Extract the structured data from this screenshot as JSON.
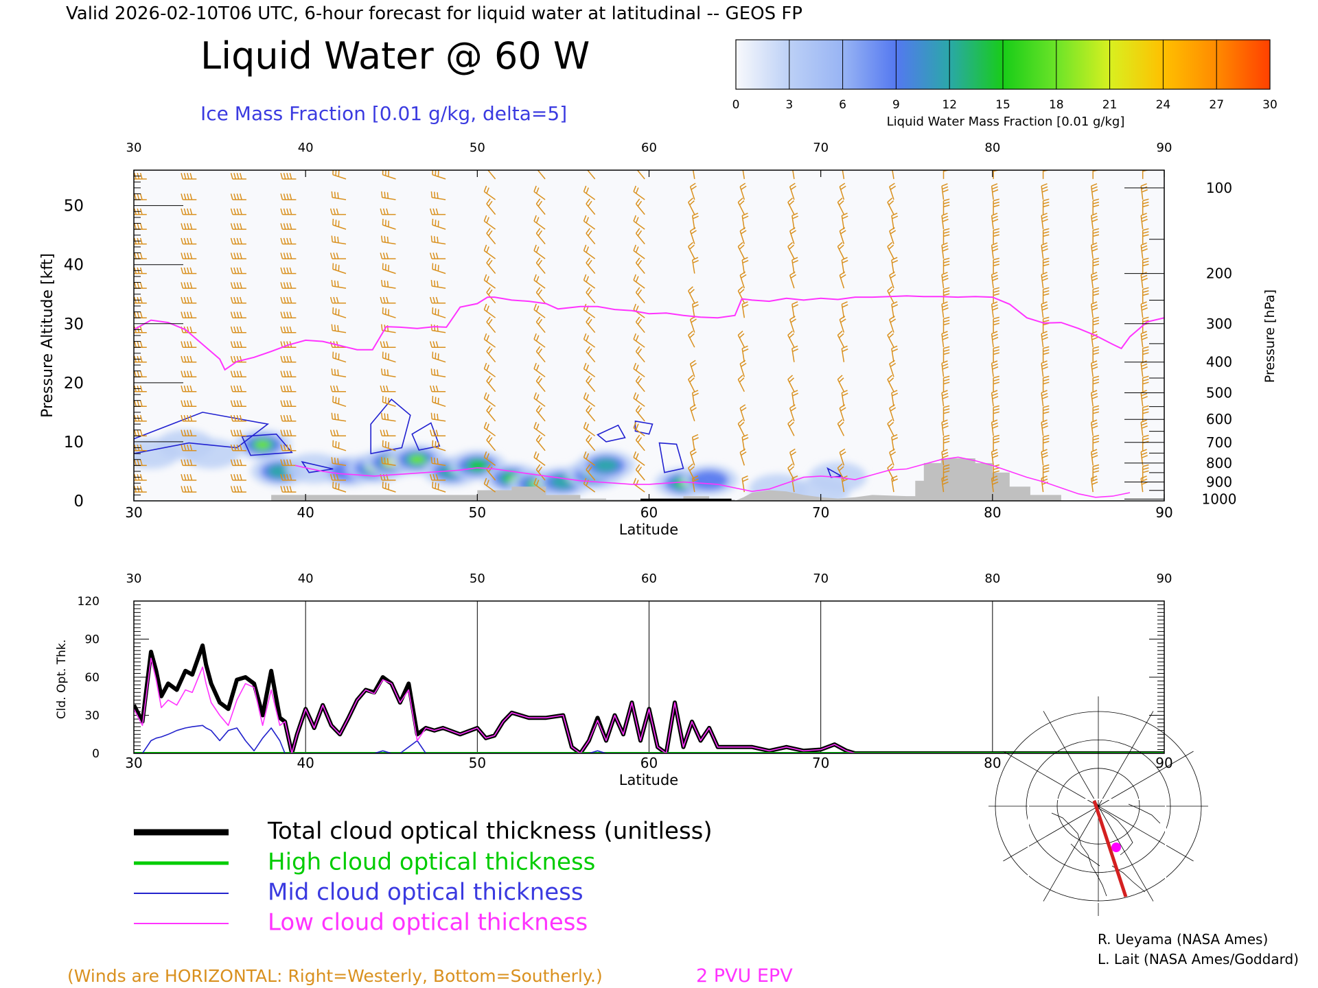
{
  "header": {
    "valid_line": "Valid 2026-02-10T06 UTC, 6-hour forecast for liquid water at latitudinal -- GEOS FP",
    "main_title": "Liquid Water @ 60 W",
    "subtitle": "Ice Mass Fraction [0.01 g/kg, delta=5]"
  },
  "colorbar": {
    "title": "Liquid Water Mass Fraction [0.01 g/kg]",
    "ticks": [
      "0",
      "3",
      "6",
      "9",
      "12",
      "15",
      "18",
      "21",
      "24",
      "27",
      "30"
    ],
    "colors": [
      "#f8f9fc",
      "#bcd0f6",
      "#98b4f4",
      "#5478f0",
      "#2aa8a8",
      "#18cc18",
      "#6ce428",
      "#d8f020",
      "#ffc000",
      "#ff8a00",
      "#ff4000"
    ]
  },
  "colors": {
    "wind_barbs": "#d9901e",
    "epv_line": "#ff33ff",
    "ice_contour": "#2020d0",
    "topography": "#c0c0c0",
    "total_line": "#000000",
    "high_line": "#00cc00",
    "mid_line": "#2222cc",
    "low_line": "#ff33ff"
  },
  "cross_section": {
    "x_top_ticks": [
      "30",
      "40",
      "50",
      "60",
      "70",
      "80",
      "90"
    ],
    "x_bottom_ticks": [
      "30",
      "40",
      "50",
      "60",
      "70",
      "80",
      "90"
    ],
    "xlabel": "Latitude",
    "ylabel_left": "Pressure Altitude [kft]",
    "y_left_ticks": [
      "0",
      "10",
      "20",
      "30",
      "40",
      "50"
    ],
    "ylabel_right": "Pressure [hPa]",
    "y_right_ticks": [
      "100",
      "200",
      "300",
      "400",
      "500",
      "600",
      "700",
      "800",
      "900",
      "1000"
    ]
  },
  "chart_data": [
    {
      "type": "area",
      "title": "Liquid Water @ 60 W",
      "xlabel": "Latitude",
      "ylabel": "Pressure Altitude [kft]",
      "xlim": [
        30,
        90
      ],
      "ylim": [
        0,
        56
      ],
      "y_right_pressure_hpa": [
        100,
        200,
        300,
        400,
        500,
        600,
        700,
        800,
        900,
        1000
      ],
      "y_right_altitude_kft": [
        53,
        38.5,
        30,
        23.5,
        18.3,
        13.8,
        9.9,
        6.4,
        3.2,
        0.3
      ],
      "epv_2pvu": {
        "name": "2 PVU EPV",
        "lat": [
          30,
          31,
          32,
          33,
          34,
          35,
          35.3,
          36,
          37,
          38,
          39,
          40,
          41,
          42,
          43,
          43.9,
          44.7,
          45.5,
          46.5,
          47.5,
          48.2,
          49,
          50,
          50.6,
          51,
          52,
          53,
          54,
          54.7,
          56,
          57,
          58,
          59,
          60,
          61,
          62,
          63,
          64,
          65,
          65.4,
          66,
          67,
          68,
          69,
          70,
          71,
          72,
          73,
          74,
          75,
          76,
          77,
          78,
          79,
          80,
          81,
          82,
          83,
          84,
          85,
          86,
          87,
          87.5,
          88,
          89,
          90
        ],
        "kft": [
          29,
          30.6,
          30.2,
          29,
          26.5,
          24,
          22.2,
          23.6,
          24.3,
          25.3,
          26.4,
          27.2,
          27.0,
          26.3,
          25.6,
          25.6,
          29.5,
          29.4,
          29.2,
          29.5,
          29.4,
          32.8,
          33.4,
          34.5,
          34.5,
          34.0,
          33.8,
          33.4,
          32.5,
          32.9,
          32.9,
          32.4,
          32.2,
          31.7,
          31.8,
          31.4,
          31.1,
          31.0,
          31.4,
          34.2,
          34.0,
          33.8,
          34.3,
          34.0,
          34.3,
          34.1,
          34.5,
          34.5,
          34.6,
          34.7,
          34.6,
          34.6,
          34.5,
          34.6,
          34.5,
          33.3,
          31.0,
          30.1,
          30.2,
          29.2,
          28.0,
          26.5,
          25.8,
          27.8,
          30.3,
          31.0
        ]
      },
      "epv_2pvu_lower": {
        "lat": [
          39.4,
          40,
          41,
          42,
          43,
          44,
          45,
          46,
          47,
          48,
          49,
          50,
          51,
          52,
          53,
          54,
          55,
          56,
          57,
          58,
          59,
          60,
          61,
          62,
          63,
          64,
          65,
          66,
          67,
          68,
          69,
          70,
          71,
          72,
          73,
          74,
          75,
          76,
          77,
          78,
          79,
          80,
          81,
          82,
          83,
          84,
          85,
          86,
          87,
          88
        ],
        "kft": [
          6.0,
          5.6,
          5.0,
          4.6,
          4.4,
          4.2,
          4.4,
          4.6,
          4.8,
          5.0,
          5.2,
          5.6,
          5.4,
          5.0,
          4.6,
          4.2,
          3.8,
          3.4,
          3.2,
          3.0,
          2.8,
          2.8,
          3.0,
          3.2,
          3.0,
          2.8,
          2.2,
          1.6,
          2.0,
          3.0,
          4.0,
          4.2,
          4.0,
          3.6,
          4.4,
          5.2,
          5.4,
          6.2,
          7.0,
          7.4,
          6.8,
          6.0,
          5.0,
          4.0,
          3.2,
          2.2,
          1.2,
          0.6,
          0.8,
          1.4
        ]
      },
      "topography": {
        "lat": [
          38,
          38,
          50,
          50,
          52,
          52,
          54,
          54,
          56,
          56,
          57.5,
          57.5,
          60,
          60,
          62,
          62,
          63.5,
          63.5,
          65,
          65,
          65.5,
          66,
          67,
          68,
          69,
          70,
          71,
          72,
          73,
          75,
          75.5,
          75.5,
          76,
          76,
          77,
          77,
          79,
          79,
          80,
          80,
          81,
          81,
          82,
          82,
          82.2,
          82.2,
          84,
          84
        ],
        "kft": [
          0,
          1.0,
          1.0,
          1.8,
          1.8,
          2.4,
          2.4,
          1.0,
          1.0,
          0.4,
          0.4,
          0.2,
          0.2,
          0.4,
          0.4,
          0.8,
          0.8,
          0.2,
          0.2,
          0,
          0.6,
          1.4,
          1.8,
          1.6,
          1.0,
          0.6,
          0.4,
          0.6,
          1.0,
          0.8,
          0.8,
          3.4,
          3.4,
          6.4,
          6.4,
          7.2,
          7.2,
          6.4,
          6.4,
          4.8,
          4.8,
          2.4,
          2.4,
          2.4,
          2.4,
          1.0,
          1.0,
          0
        ]
      },
      "liquid_water_cells": [
        {
          "lat": 31.0,
          "kft": 8.0,
          "value": 4
        },
        {
          "lat": 33.0,
          "kft": 9.5,
          "value": 5
        },
        {
          "lat": 34.5,
          "kft": 8.0,
          "value": 3
        },
        {
          "lat": 37.5,
          "kft": 9.5,
          "value": 17
        },
        {
          "lat": 38.5,
          "kft": 5.0,
          "value": 14
        },
        {
          "lat": 40.5,
          "kft": 5.5,
          "value": 5
        },
        {
          "lat": 42.5,
          "kft": 5.0,
          "value": 10
        },
        {
          "lat": 44.0,
          "kft": 5.5,
          "value": 18
        },
        {
          "lat": 45.0,
          "kft": 6.5,
          "value": 20
        },
        {
          "lat": 46.5,
          "kft": 7.0,
          "value": 17
        },
        {
          "lat": 48.5,
          "kft": 5.0,
          "value": 14
        },
        {
          "lat": 50.0,
          "kft": 6.0,
          "value": 16
        },
        {
          "lat": 52.0,
          "kft": 3.8,
          "value": 15
        },
        {
          "lat": 53.5,
          "kft": 2.8,
          "value": 18
        },
        {
          "lat": 55.0,
          "kft": 3.2,
          "value": 14
        },
        {
          "lat": 56.8,
          "kft": 4.5,
          "value": 13
        },
        {
          "lat": 57.5,
          "kft": 6.0,
          "value": 12
        },
        {
          "lat": 62.0,
          "kft": 3.0,
          "value": 15
        },
        {
          "lat": 63.5,
          "kft": 3.5,
          "value": 8
        },
        {
          "lat": 67.5,
          "kft": 2.0,
          "value": 3
        },
        {
          "lat": 70.0,
          "kft": 1.5,
          "value": 2
        },
        {
          "lat": 71.0,
          "kft": 4.0,
          "value": 3
        }
      ],
      "ice_contour_lat_centers": [
        31.5,
        37.5,
        44.8,
        47.0,
        57.5,
        61.3,
        40.0,
        70.7
      ]
    },
    {
      "type": "line",
      "xlabel": "Latitude",
      "ylabel": "Cld. Opt. Thk.",
      "xlim": [
        30,
        90
      ],
      "ylim": [
        0,
        120
      ],
      "x_ticks": [
        "30",
        "40",
        "50",
        "60",
        "70",
        "80",
        "90"
      ],
      "y_ticks": [
        "0",
        "30",
        "60",
        "90",
        "120"
      ],
      "x": [
        30,
        30.5,
        31,
        31.3,
        31.6,
        32,
        32.5,
        33,
        33.4,
        34,
        34.2,
        34.5,
        35,
        35.5,
        36,
        36.5,
        37,
        37.5,
        38,
        38.5,
        38.8,
        39.2,
        39.5,
        40,
        40.5,
        41,
        41.5,
        42,
        42.5,
        43,
        43.5,
        44,
        44.5,
        45,
        45.5,
        46,
        46.5,
        47,
        47.5,
        48,
        49,
        50,
        50.5,
        51,
        51.5,
        52,
        53,
        54,
        55,
        55.5,
        56,
        56.5,
        57,
        57.5,
        58,
        58.5,
        59,
        59.5,
        60,
        60.5,
        61,
        61.5,
        62,
        62.5,
        63,
        63.5,
        64,
        65,
        66,
        67,
        68,
        69,
        70,
        70.8,
        71.5,
        72,
        75,
        80,
        85,
        90
      ],
      "series": [
        {
          "name": "Total cloud optical thickness (unitless)",
          "values": [
            38,
            25,
            80,
            65,
            45,
            55,
            50,
            65,
            62,
            85,
            70,
            55,
            40,
            35,
            58,
            60,
            55,
            30,
            65,
            28,
            25,
            0,
            15,
            35,
            20,
            38,
            22,
            15,
            28,
            42,
            50,
            48,
            60,
            55,
            40,
            55,
            15,
            20,
            18,
            20,
            15,
            20,
            12,
            14,
            25,
            32,
            28,
            28,
            30,
            5,
            0,
            10,
            28,
            10,
            30,
            15,
            40,
            10,
            35,
            5,
            0,
            40,
            5,
            25,
            10,
            20,
            5,
            5,
            5,
            2,
            5,
            2,
            3,
            7,
            2,
            0,
            0,
            0,
            0,
            0
          ]
        },
        {
          "name": "High cloud optical thickness",
          "values": [
            0,
            0,
            0,
            0,
            0,
            0,
            0,
            0,
            0,
            0,
            0,
            0,
            0,
            0,
            0,
            0,
            0,
            0,
            0,
            0,
            0,
            0,
            0,
            0,
            0,
            0,
            0,
            0,
            0,
            0,
            0,
            0,
            0,
            0,
            0,
            0,
            0,
            0,
            0,
            0,
            0,
            0,
            0,
            0,
            0,
            0,
            0,
            0,
            0,
            0,
            0,
            0,
            0,
            0,
            0,
            0,
            0,
            0,
            0,
            0,
            0,
            0,
            0,
            0,
            0,
            0,
            0,
            0,
            0,
            0,
            0,
            0,
            0,
            0,
            0,
            0,
            0,
            0,
            0,
            0
          ]
        },
        {
          "name": "Mid cloud optical thickness",
          "values": [
            0,
            0,
            10,
            12,
            13,
            15,
            18,
            20,
            21,
            22,
            20,
            18,
            10,
            18,
            20,
            10,
            2,
            12,
            20,
            10,
            0,
            0,
            0,
            0,
            0,
            0,
            0,
            0,
            0,
            0,
            0,
            0,
            2,
            0,
            0,
            5,
            10,
            0,
            0,
            0,
            0,
            0,
            0,
            0,
            0,
            0,
            0,
            0,
            0,
            0,
            0,
            0,
            2,
            0,
            0,
            0,
            0,
            0,
            0,
            0,
            0,
            0,
            0,
            0,
            0,
            0,
            0,
            0,
            0,
            0,
            0,
            0,
            0,
            0,
            0,
            0,
            0,
            0,
            0,
            0
          ]
        },
        {
          "name": "Low cloud optical thickness",
          "values": [
            35,
            22,
            75,
            58,
            36,
            42,
            38,
            50,
            48,
            68,
            55,
            40,
            30,
            22,
            42,
            55,
            52,
            22,
            50,
            22,
            25,
            0,
            15,
            35,
            20,
            38,
            22,
            15,
            28,
            42,
            50,
            47,
            58,
            55,
            40,
            50,
            10,
            20,
            18,
            20,
            15,
            20,
            12,
            14,
            25,
            32,
            28,
            28,
            30,
            5,
            0,
            10,
            26,
            10,
            30,
            15,
            40,
            10,
            35,
            5,
            0,
            40,
            5,
            25,
            10,
            20,
            5,
            5,
            5,
            2,
            5,
            2,
            3,
            7,
            2,
            0,
            0,
            0,
            0,
            0
          ]
        }
      ]
    }
  ],
  "legend": {
    "total": "Total cloud optical thickness (unitless)",
    "high": "High cloud optical thickness",
    "mid": "Mid cloud optical thickness",
    "low": "Low cloud optical thickness"
  },
  "footer": {
    "winds_note": "(Winds are HORIZONTAL: Right=Westerly, Bottom=Southerly.)",
    "epv_note": "2 PVU EPV",
    "credit_1": "R. Ueyama (NASA Ames)",
    "credit_2": "L. Lait (NASA Ames/Goddard)"
  }
}
